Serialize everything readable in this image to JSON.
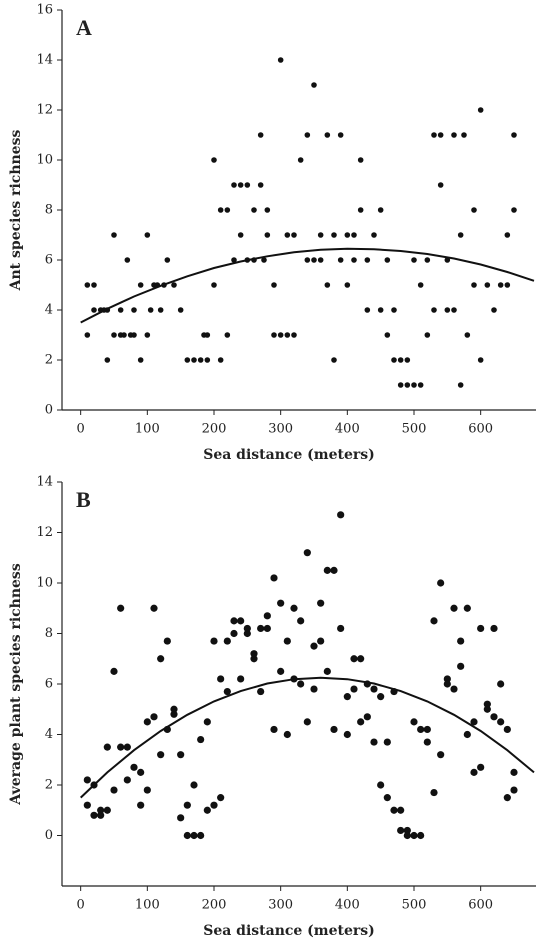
{
  "chart_data": [
    {
      "type": "scatter",
      "panel_label": "A",
      "xlabel": "Sea distance (meters)",
      "ylabel": "Ant species richness",
      "xlim": [
        -28,
        683
      ],
      "xticks": [
        0,
        100,
        200,
        300,
        400,
        500,
        600
      ],
      "ylim": [
        0,
        16
      ],
      "yticks": [
        0,
        2,
        4,
        6,
        8,
        10,
        12,
        14,
        16
      ],
      "series": [
        {
          "color": "#111111",
          "x": [
            10,
            10,
            20,
            20,
            30,
            35,
            40,
            40,
            50,
            50,
            60,
            60,
            65,
            70,
            75,
            80,
            80,
            90,
            90,
            100,
            100,
            105,
            110,
            115,
            120,
            125,
            130,
            140,
            150,
            160,
            170,
            180,
            185,
            190,
            190,
            200,
            200,
            210,
            210,
            220,
            220,
            230,
            230,
            240,
            240,
            250,
            250,
            260,
            260,
            270,
            270,
            275,
            280,
            280,
            290,
            290,
            300,
            300,
            310,
            310,
            320,
            320,
            330,
            340,
            340,
            350,
            350,
            360,
            360,
            370,
            370,
            380,
            380,
            390,
            390,
            400,
            400,
            410,
            410,
            420,
            420,
            430,
            430,
            440,
            450,
            450,
            460,
            460,
            470,
            470,
            480,
            480,
            490,
            490,
            500,
            500,
            510,
            510,
            520,
            520,
            530,
            530,
            540,
            540,
            550,
            550,
            560,
            560,
            570,
            570,
            575,
            580,
            590,
            590,
            600,
            600,
            610,
            620,
            630,
            640,
            640,
            650,
            650
          ],
          "values": [
            3,
            5,
            5,
            4,
            4,
            4,
            4,
            2,
            7,
            3,
            3,
            4,
            3,
            6,
            3,
            3,
            4,
            5,
            2,
            7,
            3,
            4,
            5,
            5,
            4,
            5,
            6,
            5,
            4,
            2,
            2,
            2,
            3,
            2,
            3,
            5,
            10,
            2,
            8,
            8,
            3,
            9,
            6,
            9,
            7,
            9,
            6,
            6,
            8,
            9,
            11,
            6,
            8,
            7,
            5,
            3,
            14,
            3,
            7,
            3,
            3,
            7,
            10,
            11,
            6,
            6,
            13,
            6,
            7,
            5,
            11,
            7,
            2,
            11,
            6,
            7,
            5,
            6,
            7,
            10,
            8,
            4,
            6,
            7,
            8,
            4,
            6,
            3,
            2,
            4,
            1,
            2,
            1,
            2,
            1,
            6,
            1,
            5,
            6,
            3,
            11,
            4,
            11,
            9,
            4,
            6,
            11,
            4,
            1,
            7,
            11,
            3,
            8,
            5,
            2,
            12,
            5,
            4,
            5,
            7,
            5,
            8,
            11
          ]
        },
        {
          "type": "line",
          "color": "#111111",
          "x": [
            0,
            40,
            80,
            120,
            160,
            200,
            240,
            280,
            320,
            360,
            400,
            440,
            480,
            520,
            560,
            600,
            640,
            680
          ],
          "values": [
            3.5,
            4.05,
            4.54,
            4.97,
            5.35,
            5.68,
            5.94,
            6.15,
            6.31,
            6.41,
            6.45,
            6.43,
            6.36,
            6.24,
            6.06,
            5.82,
            5.52,
            5.17
          ]
        }
      ]
    },
    {
      "type": "scatter",
      "panel_label": "B",
      "xlabel": "Sea distance (meters)",
      "ylabel": "Average plant species richness",
      "xlim": [
        -28,
        683
      ],
      "xticks": [
        0,
        100,
        200,
        300,
        400,
        500,
        600
      ],
      "ylim": [
        -2,
        14
      ],
      "yticks": [
        0,
        2,
        4,
        6,
        8,
        10,
        12,
        14
      ],
      "series": [
        {
          "color": "#111111",
          "x": [
            10,
            10,
            20,
            20,
            30,
            30,
            40,
            40,
            50,
            50,
            60,
            60,
            70,
            70,
            80,
            90,
            90,
            100,
            100,
            110,
            110,
            120,
            120,
            130,
            130,
            140,
            140,
            150,
            150,
            160,
            160,
            170,
            170,
            180,
            180,
            190,
            190,
            200,
            200,
            210,
            210,
            220,
            220,
            230,
            230,
            240,
            240,
            250,
            250,
            260,
            260,
            270,
            270,
            280,
            280,
            290,
            290,
            300,
            300,
            310,
            310,
            320,
            320,
            330,
            330,
            340,
            340,
            350,
            350,
            360,
            360,
            370,
            370,
            380,
            380,
            390,
            390,
            400,
            400,
            410,
            410,
            420,
            420,
            430,
            430,
            440,
            440,
            450,
            450,
            460,
            460,
            470,
            470,
            480,
            480,
            490,
            490,
            500,
            500,
            510,
            510,
            520,
            520,
            530,
            530,
            540,
            540,
            550,
            550,
            560,
            560,
            570,
            570,
            580,
            580,
            590,
            590,
            600,
            600,
            610,
            610,
            620,
            620,
            630,
            630,
            640,
            640,
            650,
            650
          ],
          "values": [
            2.2,
            1.2,
            2,
            0.8,
            0.8,
            1,
            3.5,
            1,
            6.5,
            1.8,
            9,
            3.5,
            3.5,
            2.2,
            2.7,
            2.5,
            1.2,
            1.8,
            4.5,
            9,
            4.7,
            7,
            3.2,
            7.7,
            4.2,
            5,
            4.8,
            3.2,
            0.7,
            1.2,
            0,
            2,
            0,
            0,
            3.8,
            4.5,
            1,
            7.7,
            1.2,
            6.2,
            1.5,
            5.7,
            7.7,
            8,
            8.5,
            6.2,
            8.5,
            8,
            8.2,
            7,
            7.2,
            8.2,
            5.7,
            8.7,
            8.2,
            4.2,
            10.2,
            9.2,
            6.5,
            4,
            7.7,
            9,
            6.2,
            8.5,
            6,
            4.5,
            11.2,
            7.5,
            5.8,
            7.7,
            9.2,
            10.5,
            6.5,
            10.5,
            4.2,
            12.7,
            8.2,
            5.5,
            4,
            7,
            5.8,
            7,
            4.5,
            6,
            4.7,
            3.7,
            5.8,
            5.5,
            2,
            1.5,
            3.7,
            5.7,
            1,
            1,
            0.2,
            0.2,
            0,
            4.5,
            0,
            4.2,
            0,
            3.7,
            4.2,
            8.5,
            1.7,
            10,
            3.2,
            6.2,
            6,
            9,
            5.8,
            7.7,
            6.7,
            4,
            9,
            2.5,
            4.5,
            8.2,
            2.7,
            5.2,
            5,
            8.2,
            4.7,
            6,
            4.5,
            1.5,
            4.2,
            2.5,
            1.8
          ]
        },
        {
          "type": "line",
          "color": "#111111",
          "x": [
            0,
            40,
            80,
            120,
            160,
            200,
            240,
            280,
            320,
            360,
            400,
            440,
            480,
            520,
            560,
            600,
            640,
            680
          ],
          "values": [
            1.5,
            2.5,
            3.38,
            4.14,
            4.78,
            5.31,
            5.72,
            6.02,
            6.19,
            6.25,
            6.19,
            6.02,
            5.72,
            5.31,
            4.78,
            4.14,
            3.38,
            2.5
          ]
        }
      ]
    }
  ]
}
